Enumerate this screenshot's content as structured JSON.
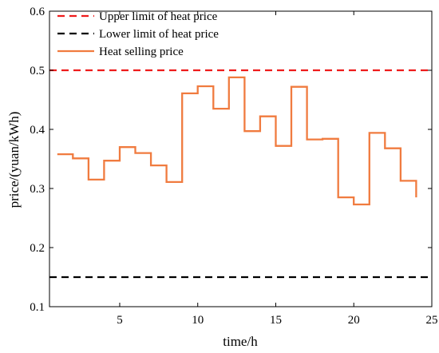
{
  "chart_data": {
    "type": "line",
    "xlabel": "time/h",
    "ylabel": "price/(yuan/kWh)",
    "xlim": [
      0.5,
      25
    ],
    "ylim": [
      0.1,
      0.6
    ],
    "xticks": [
      5,
      10,
      15,
      20,
      25
    ],
    "yticks": [
      0.1,
      0.2,
      0.3,
      0.4,
      0.5,
      0.6
    ],
    "grid": false,
    "legend_position": "top-left",
    "series": [
      {
        "name": "Upper limit of heat price",
        "style": "dashed",
        "color": "#ee1c1c",
        "x": [
          0.5,
          25
        ],
        "y": [
          0.5,
          0.5
        ]
      },
      {
        "name": "Lower limit of heat price",
        "style": "dashed",
        "color": "#000000",
        "x": [
          0.5,
          25
        ],
        "y": [
          0.15,
          0.15
        ]
      },
      {
        "name": "Heat selling price",
        "style": "step",
        "color": "#f07b3f",
        "x": [
          1,
          2,
          3,
          4,
          5,
          6,
          7,
          8,
          9,
          10,
          11,
          12,
          13,
          14,
          15,
          16,
          17,
          18,
          19,
          20,
          21,
          22,
          23,
          24
        ],
        "y": [
          0.358,
          0.351,
          0.315,
          0.347,
          0.37,
          0.36,
          0.339,
          0.311,
          0.461,
          0.473,
          0.435,
          0.488,
          0.397,
          0.422,
          0.372,
          0.472,
          0.383,
          0.384,
          0.285,
          0.273,
          0.394,
          0.368,
          0.313,
          0.285
        ]
      }
    ]
  }
}
